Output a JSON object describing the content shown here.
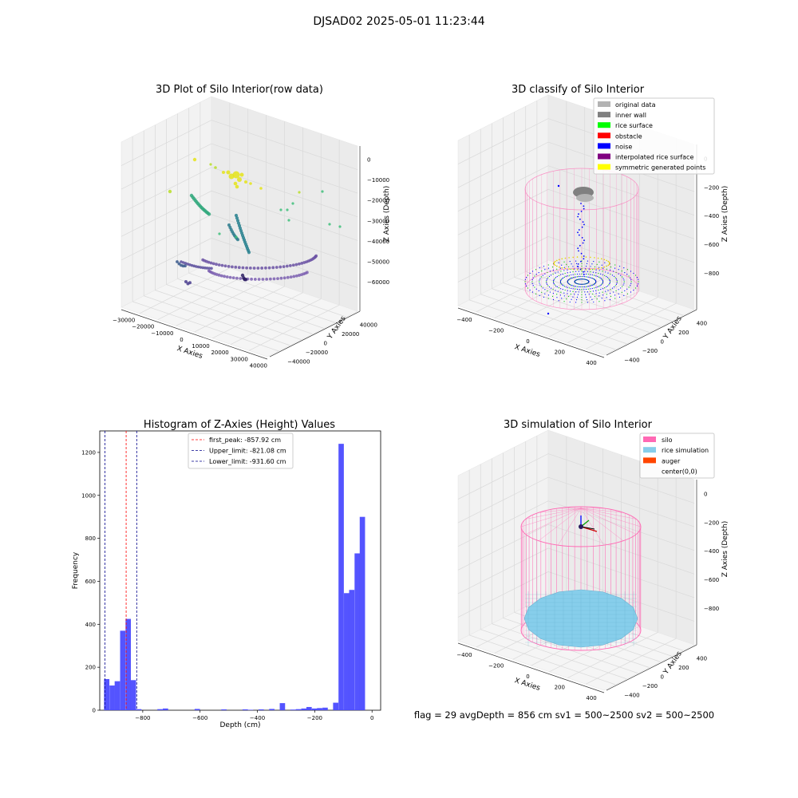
{
  "figure": {
    "title": "DJSAD02 2025-05-01 11:23:44",
    "footer": "flag = 29  avgDepth = 856 cm  sv1 = 500~2500  sv2 = 500~2500"
  },
  "panels": {
    "raw": {
      "title": "3D Plot of Silo Interior(row data)",
      "xlabel": "X Axies",
      "ylabel": "Y Axies",
      "zlabel": "Z Axies (Depth)",
      "xticks": [
        "−30000",
        "−20000",
        "−10000",
        "0",
        "10000",
        "20000",
        "30000",
        "40000"
      ],
      "yticks": [
        "−40000",
        "−20000",
        "0",
        "20000",
        "40000"
      ],
      "zticks": [
        "0",
        "−10000",
        "−20000",
        "−30000",
        "−40000",
        "−50000",
        "−60000"
      ]
    },
    "classify": {
      "title": "3D classify of Silo Interior",
      "xlabel": "X Axies",
      "ylabel": "Y Axies",
      "zlabel": "Z Axies (Depth)",
      "xticks": [
        "−400",
        "−200",
        "0",
        "200",
        "400"
      ],
      "yticks": [
        "−400",
        "−200",
        "0",
        "200",
        "400"
      ],
      "zticks": [
        "0",
        "−200",
        "−400",
        "−600",
        "−800"
      ],
      "legend": [
        {
          "label": "original data",
          "color": "#b3b3b3"
        },
        {
          "label": "inner wall",
          "color": "#808080"
        },
        {
          "label": "rice surface",
          "color": "#00ff00"
        },
        {
          "label": "obstacle",
          "color": "#ff0000"
        },
        {
          "label": "noise",
          "color": "#0000ff"
        },
        {
          "label": "interpolated rice surface",
          "color": "#800080"
        },
        {
          "label": "symmetric generated points",
          "color": "#ffff00"
        }
      ]
    },
    "histogram": {
      "title": "Histogram of Z-Axies (Height) Values",
      "xlabel": "Depth (cm)",
      "ylabel": "Frequency",
      "legend": [
        {
          "label": "first_peak: -857.92 cm",
          "color": "#ff0000"
        },
        {
          "label": "Upper_limit: -821.08 cm",
          "color": "#00008b"
        },
        {
          "label": "Lower_limit: -931.60 cm",
          "color": "#00008b"
        }
      ]
    },
    "simulation": {
      "title": "3D simulation of Silo Interior",
      "xlabel": "X Axies",
      "ylabel": "Y Axies",
      "zlabel": "Z Axies (Depth)",
      "xticks": [
        "−400",
        "−200",
        "0",
        "200",
        "400"
      ],
      "yticks": [
        "−400",
        "−200",
        "0",
        "200",
        "400"
      ],
      "zticks": [
        "0",
        "−200",
        "−400",
        "−600",
        "−800"
      ],
      "legend": [
        {
          "label": "silo",
          "color": "#ff69b4"
        },
        {
          "label": "rice simulation",
          "color": "#87ceeb"
        },
        {
          "label": "auger",
          "color": "#ff4500"
        },
        {
          "label": "center(0,0)",
          "color": ""
        }
      ]
    }
  },
  "chart_data": [
    {
      "type": "scatter",
      "title": "3D Plot of Silo Interior(row data)",
      "xlabel": "X Axies",
      "ylabel": "Y Axies",
      "zlabel": "Z Axies (Depth)",
      "xlim": [
        -30000,
        40000
      ],
      "ylim": [
        -40000,
        40000
      ],
      "zlim": [
        -60000,
        0
      ],
      "grid": true
    },
    {
      "type": "scatter",
      "title": "3D classify of Silo Interior",
      "xlabel": "X Axies",
      "ylabel": "Y Axies",
      "zlabel": "Z Axies (Depth)",
      "xlim": [
        -400,
        400
      ],
      "ylim": [
        -400,
        400
      ],
      "zlim": [
        -900,
        0
      ],
      "series": [
        {
          "name": "original data"
        },
        {
          "name": "inner wall"
        },
        {
          "name": "rice surface"
        },
        {
          "name": "obstacle"
        },
        {
          "name": "noise"
        },
        {
          "name": "interpolated rice surface"
        },
        {
          "name": "symmetric generated points"
        }
      ],
      "legend_position": "top-right",
      "grid": true
    },
    {
      "type": "bar",
      "title": "Histogram of Z-Axies (Height) Values",
      "xlabel": "Depth (cm)",
      "ylabel": "Frequency",
      "xlim": [
        -950,
        30
      ],
      "ylim": [
        0,
        1300
      ],
      "xticks": [
        -800,
        -600,
        -400,
        -200,
        0
      ],
      "yticks": [
        0,
        200,
        400,
        600,
        800,
        1000,
        1200
      ],
      "bin_width": 18.6,
      "bins": [
        {
          "x0": -935,
          "count": 145
        },
        {
          "x0": -916,
          "count": 115
        },
        {
          "x0": -898,
          "count": 135
        },
        {
          "x0": -879,
          "count": 370
        },
        {
          "x0": -860,
          "count": 425
        },
        {
          "x0": -842,
          "count": 140
        },
        {
          "x0": -823,
          "count": 5
        },
        {
          "x0": -749,
          "count": 5
        },
        {
          "x0": -730,
          "count": 8
        },
        {
          "x0": -619,
          "count": 6
        },
        {
          "x0": -526,
          "count": 4
        },
        {
          "x0": -452,
          "count": 4
        },
        {
          "x0": -433,
          "count": 2
        },
        {
          "x0": -396,
          "count": 4
        },
        {
          "x0": -359,
          "count": 6
        },
        {
          "x0": -322,
          "count": 33
        },
        {
          "x0": -285,
          "count": 3
        },
        {
          "x0": -266,
          "count": 5
        },
        {
          "x0": -247,
          "count": 8
        },
        {
          "x0": -229,
          "count": 15
        },
        {
          "x0": -210,
          "count": 8
        },
        {
          "x0": -192,
          "count": 10
        },
        {
          "x0": -173,
          "count": 12
        },
        {
          "x0": -136,
          "count": 35
        },
        {
          "x0": -117,
          "count": 1240
        },
        {
          "x0": -98,
          "count": 545
        },
        {
          "x0": -80,
          "count": 560
        },
        {
          "x0": -61,
          "count": 730
        },
        {
          "x0": -43,
          "count": 900
        }
      ],
      "vlines": [
        {
          "label": "first_peak: -857.92 cm",
          "x": -857.92,
          "color": "#ff0000"
        },
        {
          "label": "Upper_limit: -821.08 cm",
          "x": -821.08,
          "color": "#00008b"
        },
        {
          "label": "Lower_limit: -931.60 cm",
          "x": -931.6,
          "color": "#00008b"
        }
      ],
      "bar_color": "#4b4bff",
      "legend_position": "top-center"
    },
    {
      "type": "scatter",
      "title": "3D simulation of Silo Interior",
      "xlabel": "X Axies",
      "ylabel": "Y Axies",
      "zlabel": "Z Axies (Depth)",
      "xlim": [
        -400,
        400
      ],
      "ylim": [
        -400,
        400
      ],
      "zlim": [
        -900,
        100
      ],
      "series": [
        {
          "name": "silo"
        },
        {
          "name": "rice simulation"
        },
        {
          "name": "auger"
        },
        {
          "name": "center(0,0)"
        }
      ],
      "legend_position": "top-right",
      "grid": true
    }
  ]
}
